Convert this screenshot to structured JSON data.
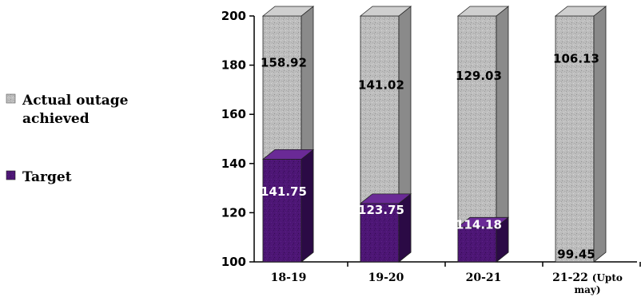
{
  "chart_data": {
    "type": "bar",
    "stacked": false,
    "three_d": true,
    "categories": [
      "18-19",
      "19-20",
      "20-21",
      "21-22 (Upto may)"
    ],
    "series": [
      {
        "name": "Actual outage achieved",
        "values": [
          158.92,
          141.02,
          129.03,
          106.13
        ],
        "color": "#b9b9b9",
        "label_color": "#000000"
      },
      {
        "name": "Target",
        "values": [
          141.75,
          123.75,
          114.18,
          99.45
        ],
        "color": "#4a1470",
        "label_color": "#ffffff"
      }
    ],
    "ylim": [
      100,
      200
    ],
    "yticks": [
      100,
      120,
      140,
      160,
      180,
      200
    ],
    "legend": "left",
    "grid": false
  }
}
